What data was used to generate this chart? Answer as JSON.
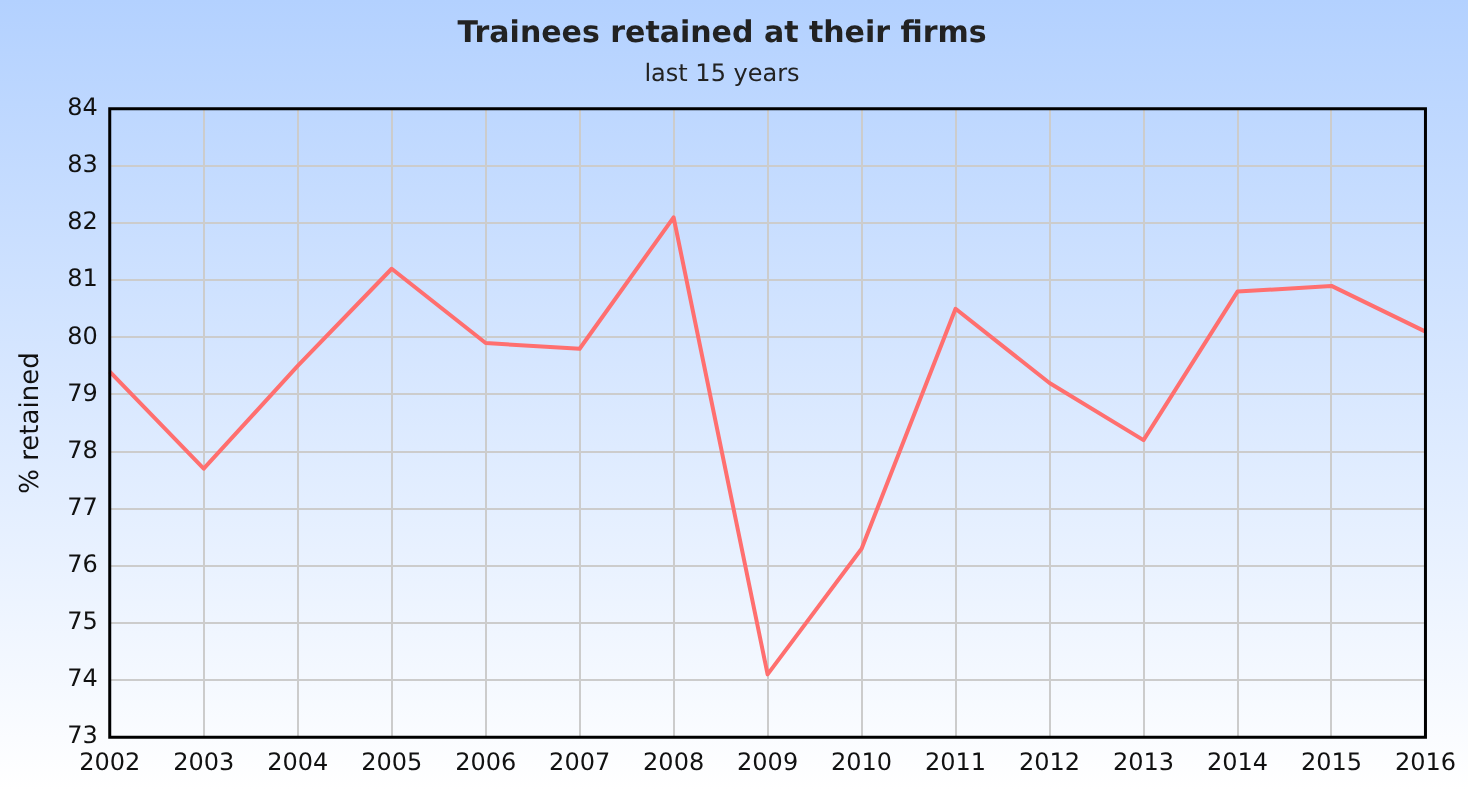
{
  "chart_data": {
    "type": "line",
    "title": "Trainees retained at their firms",
    "subtitle": "last 15 years",
    "ylabel": "% retained",
    "categories": [
      "2002",
      "2003",
      "2004",
      "2005",
      "2006",
      "2007",
      "2008",
      "2009",
      "2010",
      "2011",
      "2012",
      "2013",
      "2014",
      "2015",
      "2016"
    ],
    "series": [
      {
        "color": "#ff6f6f",
        "values": [
          79.4,
          77.7,
          79.5,
          81.2,
          79.9,
          79.8,
          82.1,
          74.1,
          76.3,
          80.5,
          79.2,
          78.2,
          80.8,
          80.9,
          80.1
        ]
      }
    ],
    "ylim": [
      73,
      84
    ],
    "yticks": [
      73,
      74,
      75,
      76,
      77,
      78,
      79,
      80,
      81,
      82,
      83,
      84
    ],
    "grid": true,
    "legend": false,
    "marker": "none",
    "line_style": "solid"
  }
}
